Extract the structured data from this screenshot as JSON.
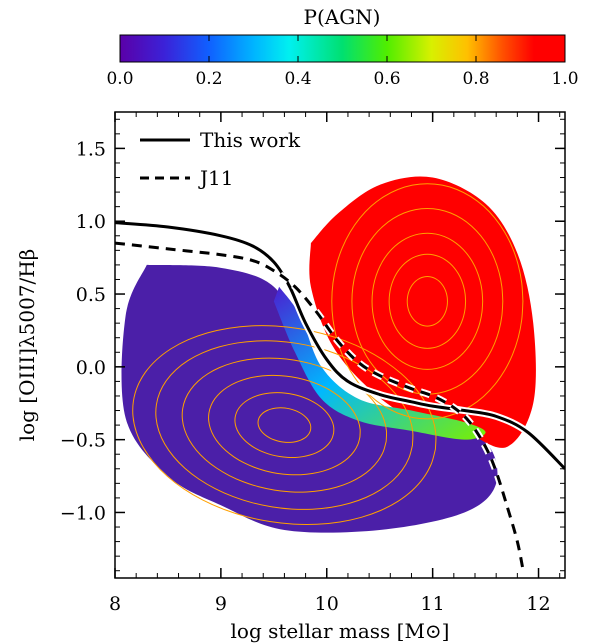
{
  "chart_data": {
    "type": "heatmap",
    "title": "",
    "xlabel": "log stellar mass [M⊙]",
    "ylabel": "log [OIII]λ5007/Hβ",
    "xlim": [
      8.0,
      12.25
    ],
    "ylim": [
      -1.45,
      1.75
    ],
    "x_ticks": [
      "8",
      "9",
      "10",
      "11",
      "12"
    ],
    "y_ticks": [
      "−1.0",
      "−0.5",
      "0.0",
      "0.5",
      "1.0",
      "1.5"
    ],
    "colorbar": {
      "label": "P(AGN)",
      "ticks": [
        "0.0",
        "0.2",
        "0.4",
        "0.6",
        "0.8",
        "1.0"
      ],
      "range": [
        0.0,
        1.0
      ]
    },
    "legend": {
      "position": "top-left",
      "entries": [
        {
          "label": "This work",
          "style": "solid"
        },
        {
          "label": "J11",
          "style": "dashed"
        }
      ]
    },
    "series": [
      {
        "name": "This work",
        "x": [
          8.0,
          8.5,
          9.0,
          9.3,
          9.5,
          9.65,
          9.8,
          10.0,
          10.2,
          10.5,
          10.8,
          11.0,
          11.3,
          11.6,
          11.9,
          12.25
        ],
        "y": [
          0.99,
          0.96,
          0.9,
          0.83,
          0.72,
          0.55,
          0.3,
          0.05,
          -0.1,
          -0.19,
          -0.24,
          -0.27,
          -0.3,
          -0.34,
          -0.45,
          -0.7
        ]
      },
      {
        "name": "J11",
        "x": [
          8.0,
          8.5,
          9.0,
          9.3,
          9.5,
          9.7,
          9.9,
          10.1,
          10.3,
          10.5,
          10.8,
          11.0,
          11.2,
          11.35,
          11.5,
          11.6,
          11.7,
          11.8,
          11.86
        ],
        "y": [
          0.85,
          0.81,
          0.77,
          0.73,
          0.66,
          0.55,
          0.38,
          0.18,
          0.03,
          -0.06,
          -0.15,
          -0.2,
          -0.28,
          -0.38,
          -0.55,
          -0.72,
          -0.95,
          -1.2,
          -1.42
        ]
      }
    ],
    "density_regions": [
      {
        "name": "star-forming",
        "p_agn": 0.0,
        "outline": [
          [
            8.3,
            0.7
          ],
          [
            9.0,
            0.68
          ],
          [
            9.5,
            0.55
          ],
          [
            9.75,
            0.2
          ],
          [
            10.0,
            -0.15
          ],
          [
            10.5,
            -0.33
          ],
          [
            11.0,
            -0.42
          ],
          [
            11.5,
            -0.52
          ],
          [
            11.6,
            -0.8
          ],
          [
            11.3,
            -1.0
          ],
          [
            10.5,
            -1.12
          ],
          [
            9.6,
            -1.12
          ],
          [
            9.0,
            -0.95
          ],
          [
            8.5,
            -0.75
          ],
          [
            8.1,
            -0.35
          ],
          [
            8.1,
            0.35
          ]
        ]
      },
      {
        "name": "agn",
        "p_agn": 1.0,
        "outline": [
          [
            9.85,
            0.85
          ],
          [
            10.1,
            1.05
          ],
          [
            10.5,
            1.25
          ],
          [
            11.0,
            1.3
          ],
          [
            11.5,
            1.12
          ],
          [
            11.8,
            0.78
          ],
          [
            11.95,
            0.3
          ],
          [
            11.95,
            -0.25
          ],
          [
            11.7,
            -0.55
          ],
          [
            11.3,
            -0.45
          ],
          [
            10.8,
            -0.35
          ],
          [
            10.4,
            -0.15
          ],
          [
            10.05,
            0.15
          ],
          [
            9.85,
            0.55
          ]
        ]
      }
    ]
  }
}
